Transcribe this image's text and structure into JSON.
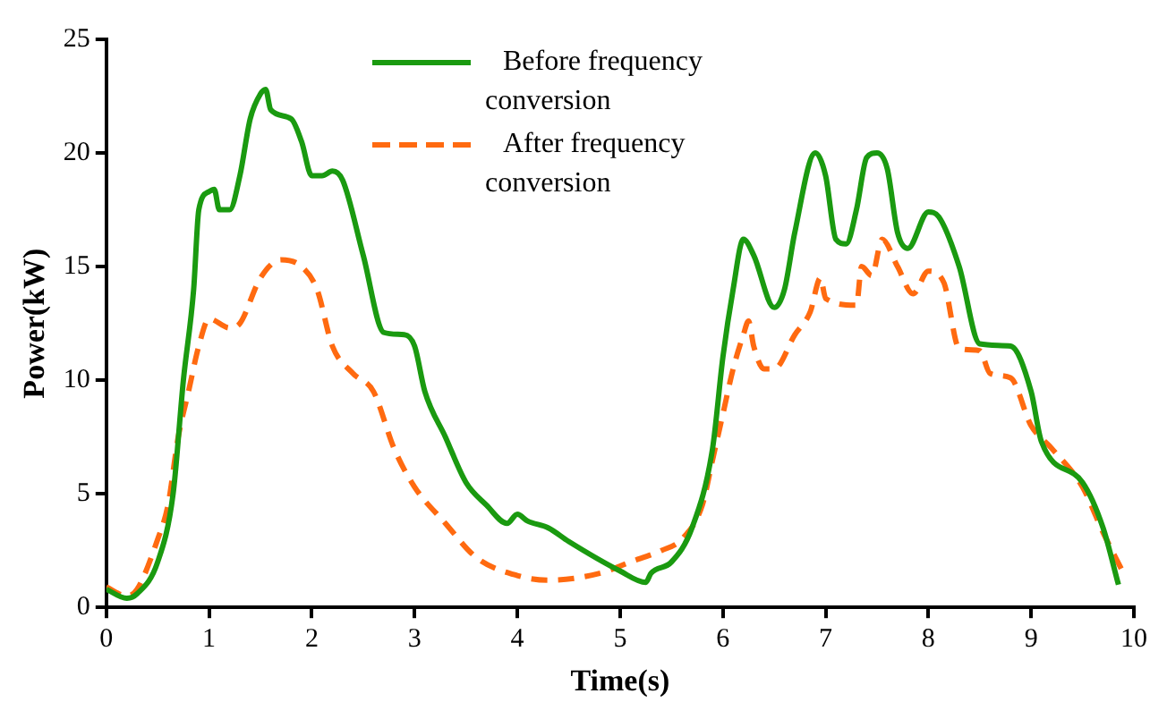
{
  "chart_data": {
    "type": "line",
    "xlabel": "Time(s)",
    "ylabel": "Power(kW)",
    "xlim": [
      0,
      10
    ],
    "xticks": [
      0,
      1,
      2,
      3,
      4,
      5,
      6,
      7,
      8,
      9,
      10
    ],
    "ylim": [
      0,
      25
    ],
    "yticks": [
      0,
      5,
      10,
      15,
      20,
      25
    ],
    "grid": false,
    "legend": "top",
    "marker": "none",
    "series": [
      {
        "name": "Before frequency conversion",
        "color": "#1a9a10",
        "line_style": "solid",
        "x": [
          0,
          0.2,
          0.3,
          0.5,
          0.65,
          0.75,
          0.85,
          0.9,
          1.0,
          1.05,
          1.1,
          1.2,
          1.3,
          1.4,
          1.5,
          1.55,
          1.6,
          1.8,
          1.9,
          2.0,
          2.1,
          2.2,
          2.3,
          2.5,
          2.7,
          2.9,
          3.0,
          3.1,
          3.3,
          3.5,
          3.7,
          3.9,
          4.0,
          4.1,
          4.3,
          4.5,
          5.0,
          5.25,
          5.3,
          5.5,
          5.7,
          5.9,
          6.0,
          6.1,
          6.2,
          6.3,
          6.5,
          6.6,
          6.7,
          6.9,
          7.0,
          7.1,
          7.2,
          7.3,
          7.4,
          7.5,
          7.6,
          7.7,
          7.8,
          8.0,
          8.1,
          8.3,
          8.5,
          8.8,
          9.0,
          9.1,
          9.5,
          9.7,
          9.85
        ],
        "values": [
          0.8,
          0.4,
          0.6,
          2,
          5,
          10,
          14,
          17.5,
          18.3,
          18.4,
          17.5,
          17.5,
          19,
          21.5,
          22.6,
          22.8,
          21.9,
          21.5,
          20.5,
          19,
          19,
          19.2,
          18.8,
          15.5,
          12.1,
          12,
          11.5,
          9.5,
          7.5,
          5.5,
          4.5,
          3.7,
          4.1,
          3.8,
          3.5,
          2.9,
          1.6,
          1.1,
          1.5,
          2,
          3.5,
          7,
          11,
          14,
          16.2,
          15.5,
          13.2,
          14,
          16.5,
          20,
          19,
          16.2,
          16,
          17.5,
          19.8,
          20,
          19.3,
          16.5,
          15.8,
          17.4,
          17.2,
          15,
          11.6,
          11.5,
          9.5,
          7.3,
          5.5,
          3.5,
          1.0
        ]
      },
      {
        "name": "After frequency conversion",
        "color": "#ff6a10",
        "line_style": "dashed",
        "x": [
          0,
          0.2,
          0.3,
          0.5,
          0.6,
          0.7,
          0.8,
          0.9,
          1.0,
          1.2,
          1.3,
          1.5,
          1.7,
          1.9,
          2.05,
          2.2,
          2.4,
          2.6,
          2.8,
          3.0,
          3.3,
          3.6,
          4.0,
          4.3,
          4.8,
          5.1,
          5.4,
          5.6,
          5.8,
          5.9,
          6.0,
          6.1,
          6.2,
          6.25,
          6.3,
          6.4,
          6.5,
          6.7,
          6.85,
          6.95,
          7.0,
          7.3,
          7.35,
          7.45,
          7.55,
          7.7,
          7.85,
          8.0,
          8.15,
          8.3,
          8.5,
          8.6,
          8.8,
          9.0,
          9.2,
          9.5,
          9.7,
          9.9
        ],
        "values": [
          0.9,
          0.5,
          0.8,
          3,
          4.5,
          7.5,
          9.5,
          11.5,
          12.7,
          12.3,
          12.5,
          14.5,
          15.3,
          15,
          14,
          11.5,
          10.3,
          9.5,
          7,
          5.3,
          3.7,
          2.2,
          1.4,
          1.2,
          1.5,
          2,
          2.5,
          3,
          4.5,
          6.5,
          8.5,
          10.5,
          12,
          12.6,
          11.5,
          10.5,
          10.5,
          12,
          13,
          14.5,
          13.6,
          13.3,
          15,
          14.6,
          16.2,
          15,
          13.8,
          14.8,
          14.3,
          11.4,
          11.3,
          10.3,
          10.1,
          8,
          7,
          5.3,
          3.3,
          1.5
        ]
      }
    ]
  }
}
